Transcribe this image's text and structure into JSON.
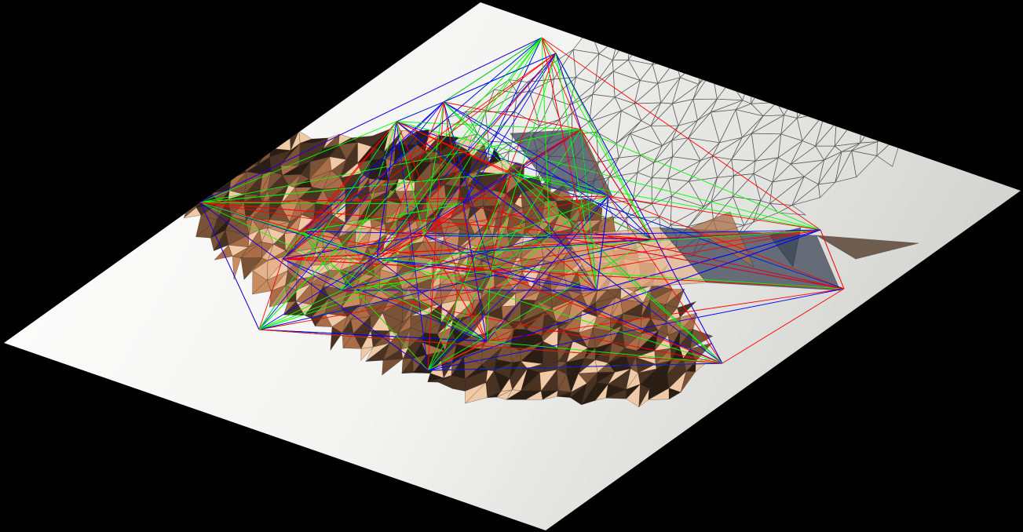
{
  "scene": {
    "background_color": "#000000",
    "plane_colors": [
      "#f4f4f2",
      "#ffffff",
      "#dadad6"
    ],
    "wire_color": "#5a5a5a",
    "skin_palette": [
      "#e7b38c",
      "#c98b60",
      "#a96e48",
      "#7a5235",
      "#4a3222",
      "#2a1d14",
      "#f0c9a6"
    ],
    "shadow_color": "#3c4656",
    "edge_colors": {
      "red": "#ff0000",
      "green": "#00ff00",
      "blue": "#0000ff"
    }
  }
}
